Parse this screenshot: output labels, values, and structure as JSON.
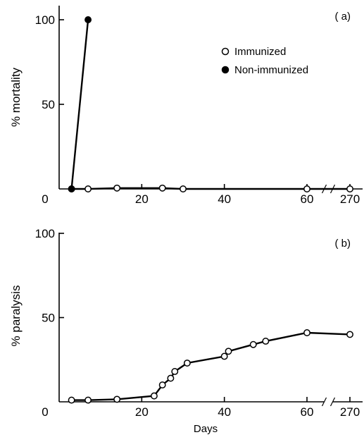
{
  "chart_data": [
    {
      "type": "line",
      "panel_label": "( a)",
      "xlabel": "",
      "ylabel": "% mortality",
      "ylim": [
        0,
        110
      ],
      "y_ticks": [
        {
          "value": 100,
          "label": "100"
        },
        {
          "value": 50,
          "label": "50"
        }
      ],
      "x_ticks": [
        {
          "value": 0,
          "label": "0"
        },
        {
          "value": 20,
          "label": "20"
        },
        {
          "value": 40,
          "label": "40"
        },
        {
          "value": 60,
          "label": "60"
        },
        {
          "value": 270,
          "label": "270"
        }
      ],
      "x_axis_break": "between 60 and 270",
      "legend_position": "upper-right",
      "series": [
        {
          "name": "Immunized",
          "marker": "open-circle",
          "color": "#000000",
          "x": [
            3,
            7,
            14,
            25,
            30,
            60,
            270
          ],
          "y": [
            0,
            0,
            0.5,
            0.5,
            0,
            0,
            0
          ]
        },
        {
          "name": "Non-immunized",
          "marker": "filled-circle",
          "color": "#000000",
          "x": [
            3,
            7
          ],
          "y": [
            0,
            100
          ]
        }
      ]
    },
    {
      "type": "line",
      "panel_label": "( b)",
      "xlabel": "Days",
      "ylabel": "% paralysis",
      "ylim": [
        0,
        100
      ],
      "y_ticks": [
        {
          "value": 100,
          "label": "100"
        },
        {
          "value": 50,
          "label": "50"
        }
      ],
      "x_ticks": [
        {
          "value": 0,
          "label": "0"
        },
        {
          "value": 20,
          "label": "20"
        },
        {
          "value": 40,
          "label": "40"
        },
        {
          "value": 60,
          "label": "60"
        },
        {
          "value": 270,
          "label": "270"
        }
      ],
      "x_axis_break": "between 60 and 270",
      "series": [
        {
          "name": "",
          "marker": "open-circle",
          "color": "#000000",
          "x": [
            3,
            7,
            14,
            23,
            25,
            27,
            28,
            31,
            40,
            41,
            47,
            50,
            60,
            270
          ],
          "y": [
            1,
            1,
            1.5,
            3.5,
            10,
            14,
            18,
            23,
            27,
            30,
            34,
            36,
            41,
            40
          ]
        }
      ]
    }
  ]
}
